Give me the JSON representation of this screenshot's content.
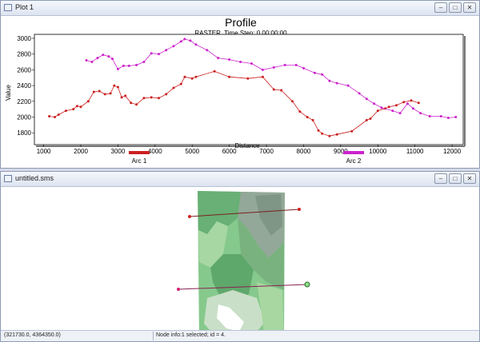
{
  "plot_window": {
    "title": "Plot 1"
  },
  "grid_window": {
    "title": "untitled.sms"
  },
  "window_buttons": {
    "minimize": "–",
    "maximize": "□",
    "close": "✕"
  },
  "status": {
    "coords": "(321730.0, 4364350.0)",
    "message": "Node info:1 selected; id = 4."
  },
  "colors": {
    "arc1": "#cc2020",
    "arc2": "#cc22cc"
  },
  "chart_data": {
    "type": "line",
    "title": "Profile",
    "subtitle": "RASTER, Time Step: 0 00:00:00",
    "xlabel": "Distance",
    "ylabel": "Value",
    "xlim": [
      750,
      12300
    ],
    "ylim": [
      1650,
      3050
    ],
    "xticks": [
      1000,
      2000,
      3000,
      4000,
      5000,
      6000,
      7000,
      8000,
      9000,
      10000,
      11000,
      12000
    ],
    "yticks": [
      1800,
      2000,
      2200,
      2400,
      2600,
      2800,
      3000
    ],
    "legend_placement": "bottom",
    "series": [
      {
        "name": "Arc 1",
        "color": "#cc2020",
        "points": [
          [
            1150,
            2010
          ],
          [
            1300,
            2000
          ],
          [
            1400,
            2030
          ],
          [
            1600,
            2080
          ],
          [
            1800,
            2100
          ],
          [
            1900,
            2140
          ],
          [
            2000,
            2130
          ],
          [
            2200,
            2200
          ],
          [
            2350,
            2320
          ],
          [
            2500,
            2330
          ],
          [
            2650,
            2290
          ],
          [
            2800,
            2300
          ],
          [
            2900,
            2400
          ],
          [
            3000,
            2380
          ],
          [
            3100,
            2250
          ],
          [
            3200,
            2270
          ],
          [
            3350,
            2180
          ],
          [
            3500,
            2160
          ],
          [
            3700,
            2240
          ],
          [
            3900,
            2250
          ],
          [
            4100,
            2240
          ],
          [
            4300,
            2290
          ],
          [
            4500,
            2370
          ],
          [
            4700,
            2420
          ],
          [
            4800,
            2510
          ],
          [
            5000,
            2490
          ],
          [
            5100,
            2510
          ],
          [
            5600,
            2580
          ],
          [
            6000,
            2510
          ],
          [
            6500,
            2490
          ],
          [
            6900,
            2510
          ],
          [
            7200,
            2350
          ],
          [
            7400,
            2340
          ],
          [
            7700,
            2200
          ],
          [
            7900,
            2070
          ],
          [
            8100,
            2000
          ],
          [
            8250,
            1960
          ],
          [
            8400,
            1830
          ],
          [
            8500,
            1790
          ],
          [
            8700,
            1760
          ],
          [
            8900,
            1780
          ],
          [
            9300,
            1820
          ],
          [
            9700,
            1960
          ],
          [
            9800,
            1980
          ],
          [
            10000,
            2080
          ],
          [
            10200,
            2110
          ],
          [
            10300,
            2130
          ],
          [
            10500,
            2150
          ],
          [
            10700,
            2190
          ],
          [
            10900,
            2210
          ],
          [
            11100,
            2180
          ]
        ]
      },
      {
        "name": "Arc 2",
        "color": "#cc22cc",
        "points": [
          [
            2150,
            2720
          ],
          [
            2300,
            2700
          ],
          [
            2450,
            2750
          ],
          [
            2600,
            2790
          ],
          [
            2750,
            2770
          ],
          [
            2850,
            2740
          ],
          [
            3000,
            2610
          ],
          [
            3150,
            2650
          ],
          [
            3300,
            2650
          ],
          [
            3500,
            2660
          ],
          [
            3700,
            2700
          ],
          [
            3900,
            2810
          ],
          [
            4100,
            2800
          ],
          [
            4300,
            2850
          ],
          [
            4500,
            2900
          ],
          [
            4700,
            2960
          ],
          [
            4800,
            2990
          ],
          [
            4950,
            2970
          ],
          [
            5100,
            2920
          ],
          [
            5400,
            2850
          ],
          [
            5700,
            2750
          ],
          [
            6000,
            2730
          ],
          [
            6300,
            2700
          ],
          [
            6600,
            2680
          ],
          [
            6900,
            2600
          ],
          [
            7200,
            2630
          ],
          [
            7500,
            2660
          ],
          [
            7800,
            2660
          ],
          [
            8000,
            2620
          ],
          [
            8300,
            2560
          ],
          [
            8500,
            2540
          ],
          [
            8700,
            2460
          ],
          [
            8900,
            2430
          ],
          [
            9200,
            2400
          ],
          [
            9500,
            2300
          ],
          [
            9700,
            2230
          ],
          [
            9900,
            2170
          ],
          [
            10100,
            2120
          ],
          [
            10400,
            2080
          ],
          [
            10600,
            2050
          ],
          [
            10800,
            2170
          ],
          [
            10950,
            2110
          ],
          [
            11150,
            2050
          ],
          [
            11400,
            2010
          ],
          [
            11700,
            2010
          ],
          [
            11900,
            1990
          ],
          [
            12100,
            2000
          ]
        ]
      }
    ]
  }
}
